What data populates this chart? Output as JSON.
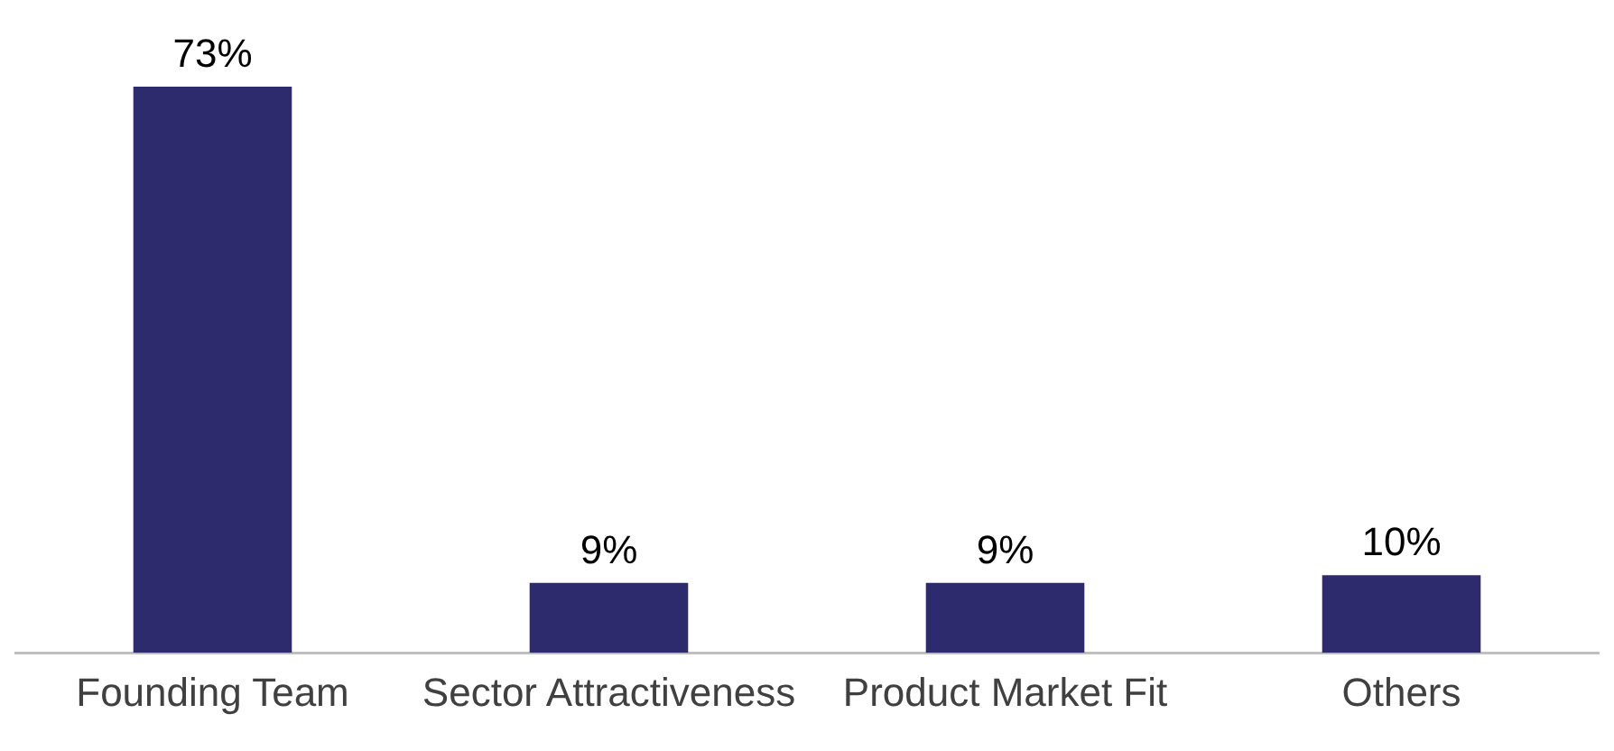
{
  "chart_data": {
    "type": "bar",
    "categories": [
      "Founding Team",
      "Sector Attractiveness",
      "Product Market Fit",
      "Others"
    ],
    "values": [
      73,
      9,
      9,
      10
    ],
    "color": "#2e2a6e",
    "value_labels": [
      "73%",
      "9%",
      "9%",
      "10%"
    ],
    "grid": false,
    "legend": false
  }
}
